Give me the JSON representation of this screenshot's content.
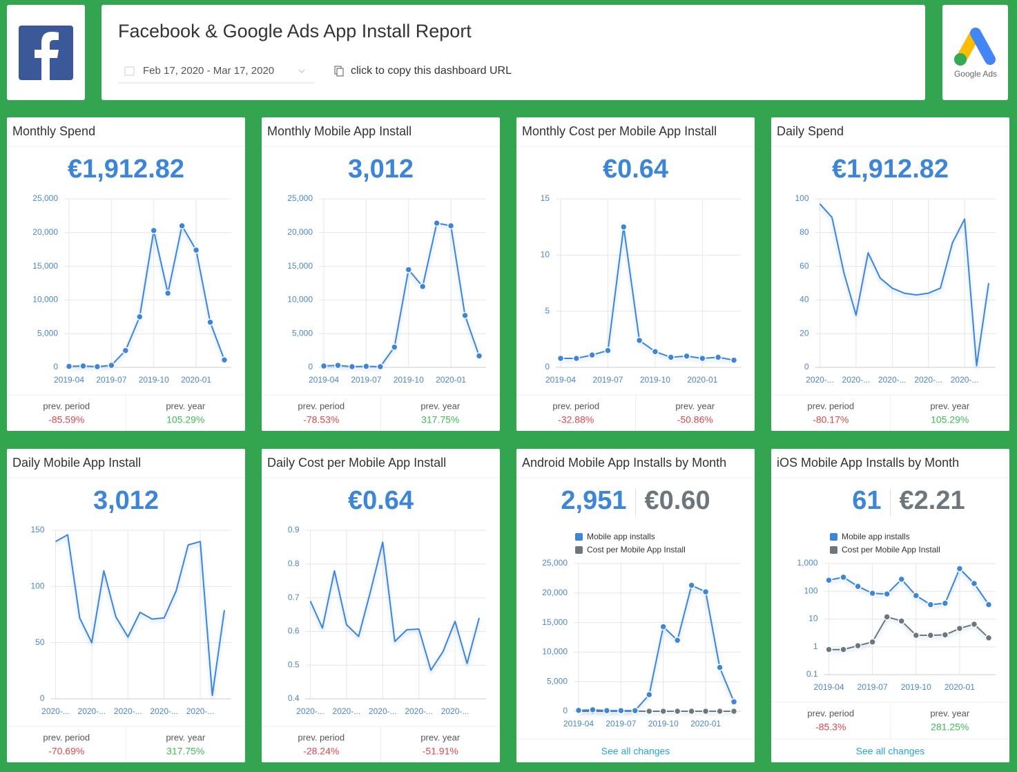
{
  "header": {
    "title": "Facebook & Google Ads App Install Report",
    "date_range": "Feb 17, 2020 - Mar 17, 2020",
    "copy_link": "click to copy this dashboard URL",
    "logo_text": "Google Ads"
  },
  "cards": [
    {
      "title": "Monthly Spend",
      "kpi": [
        "€1,912.82"
      ],
      "chart": {
        "type": "line",
        "markers": true,
        "color": "#3d85d8",
        "categories": [
          "2019-04",
          null,
          null,
          "2019-07",
          null,
          null,
          "2019-10",
          null,
          null,
          "2020-01",
          null,
          null
        ],
        "values": [
          150,
          200,
          100,
          300,
          2500,
          7500,
          20300,
          11000,
          21000,
          17400,
          6700,
          1100
        ],
        "ylim": [
          0,
          25000
        ],
        "yticks": [
          0,
          {
            "value": 5000,
            "label": "5,000"
          },
          {
            "value": 10000,
            "label": "10,000"
          },
          {
            "value": 15000,
            "label": "15,000"
          },
          {
            "value": 20000,
            "label": "20,000"
          },
          {
            "value": 25000,
            "label": "25,000"
          }
        ],
        "grid": true
      },
      "compare": [
        {
          "label": "prev. period",
          "value": "-85.59%",
          "color": "#e0454b"
        },
        {
          "label": "prev. year",
          "value": "105.29%",
          "color": "#3cba5a"
        }
      ]
    },
    {
      "title": "Monthly Mobile App Install",
      "kpi": [
        "3,012"
      ],
      "chart": {
        "type": "line",
        "markers": true,
        "color": "#3d85d8",
        "categories": [
          "2019-04",
          null,
          null,
          "2019-07",
          null,
          null,
          "2019-10",
          null,
          null,
          "2020-01",
          null,
          null
        ],
        "values": [
          200,
          300,
          100,
          150,
          100,
          3000,
          14500,
          12000,
          21400,
          21000,
          7700,
          1700
        ],
        "ylim": [
          0,
          25000
        ],
        "yticks": [
          0,
          {
            "value": 5000,
            "label": "5,000"
          },
          {
            "value": 10000,
            "label": "10,000"
          },
          {
            "value": 15000,
            "label": "15,000"
          },
          {
            "value": 20000,
            "label": "20,000"
          },
          {
            "value": 25000,
            "label": "25,000"
          }
        ],
        "grid": true
      },
      "compare": [
        {
          "label": "prev. period",
          "value": "-78.53%",
          "color": "#e0454b"
        },
        {
          "label": "prev. year",
          "value": "317.75%",
          "color": "#3cba5a"
        }
      ]
    },
    {
      "title": "Monthly Cost per Mobile App Install",
      "kpi": [
        "€0.64"
      ],
      "chart": {
        "type": "line",
        "markers": true,
        "color": "#3d85d8",
        "categories": [
          "2019-04",
          null,
          null,
          "2019-07",
          null,
          null,
          "2019-10",
          null,
          null,
          "2020-01",
          null,
          null
        ],
        "values": [
          0.8,
          0.8,
          1.1,
          1.5,
          12.5,
          2.4,
          1.4,
          0.9,
          1.0,
          0.8,
          0.9,
          0.64
        ],
        "ylim": [
          0,
          15
        ],
        "yticks": [
          0,
          5,
          10,
          15
        ],
        "grid": true
      },
      "compare": [
        {
          "label": "prev. period",
          "value": "-32.88%",
          "color": "#e0454b"
        },
        {
          "label": "prev. year",
          "value": "-50.86%",
          "color": "#e0454b"
        }
      ]
    },
    {
      "title": "Daily Spend",
      "kpi": [
        "€1,912.82"
      ],
      "chart": {
        "type": "line",
        "markers": false,
        "color": "#3d85d8",
        "categories": [
          "2020-...",
          null,
          null,
          "2020-...",
          null,
          null,
          "2020-...",
          null,
          null,
          "2020-...",
          null,
          null,
          "2020-...",
          null,
          null
        ],
        "values": [
          97,
          89,
          56,
          31,
          68,
          53,
          47,
          44,
          43,
          44,
          47,
          74,
          88,
          1,
          50
        ],
        "ylim": [
          0,
          100
        ],
        "yticks": [
          0,
          20,
          40,
          60,
          80,
          100
        ],
        "grid": true
      },
      "compare": [
        {
          "label": "prev. period",
          "value": "-80.17%",
          "color": "#e0454b"
        },
        {
          "label": "prev. year",
          "value": "105.29%",
          "color": "#3cba5a"
        }
      ]
    },
    {
      "title": "Daily Mobile App Install",
      "kpi": [
        "3,012"
      ],
      "chart": {
        "type": "line",
        "markers": false,
        "color": "#3d85d8",
        "categories": [
          "2020-...",
          null,
          null,
          "2020-...",
          null,
          null,
          "2020-...",
          null,
          null,
          "2020-...",
          null,
          null,
          "2020-...",
          null,
          null
        ],
        "values": [
          140,
          146,
          72,
          50,
          114,
          73,
          55,
          77,
          71,
          72,
          96,
          137,
          140,
          3,
          79
        ],
        "ylim": [
          0,
          150
        ],
        "yticks": [
          0,
          50,
          100,
          150
        ],
        "grid": true
      },
      "compare": [
        {
          "label": "prev. period",
          "value": "-70.69%",
          "color": "#e0454b"
        },
        {
          "label": "prev. year",
          "value": "317.75%",
          "color": "#3cba5a"
        }
      ]
    },
    {
      "title": "Daily Cost per Mobile App Install",
      "kpi": [
        "€0.64"
      ],
      "chart": {
        "type": "line",
        "markers": false,
        "color": "#3d85d8",
        "categories": [
          "2020-...",
          null,
          null,
          "2020-...",
          null,
          null,
          "2020-...",
          null,
          null,
          "2020-...",
          null,
          null,
          "2020-...",
          null,
          null
        ],
        "values": [
          0.69,
          0.61,
          0.78,
          0.62,
          0.585,
          0.72,
          0.865,
          0.57,
          0.605,
          0.607,
          0.485,
          0.54,
          0.63,
          0.505,
          0.64
        ],
        "ylim": [
          0.4,
          0.9
        ],
        "yticks": [
          0.4,
          0.5,
          0.6,
          0.7,
          0.8,
          0.9
        ],
        "grid": true
      },
      "compare": [
        {
          "label": "prev. period",
          "value": "-28.24%",
          "color": "#e0454b"
        },
        {
          "label": "prev. year",
          "value": "-51.91%",
          "color": "#e0454b"
        }
      ]
    },
    {
      "title": "Android Mobile App Installs by Month",
      "kpi": [
        "2,951",
        "€0.60"
      ],
      "chart": {
        "type": "line",
        "markers": true,
        "categories": [
          "2019-04",
          null,
          null,
          "2019-07",
          null,
          null,
          "2019-10",
          null,
          null,
          "2020-01",
          null,
          null
        ],
        "series": [
          {
            "name": "Mobile app installs",
            "color": "#3d85d8",
            "values": [
              150,
              250,
              100,
              100,
              100,
              2800,
              14300,
              12000,
              21300,
              20200,
              7400,
              1600
            ]
          },
          {
            "name": "Cost per Mobile App Install",
            "color": "#6d757d",
            "values": [
              0.8,
              0.8,
              1.1,
              1.5,
              12.5,
              2.4,
              1.4,
              0.9,
              1.0,
              0.8,
              0.9,
              0.6
            ]
          }
        ],
        "ylim": [
          0,
          25000
        ],
        "yticks": [
          0,
          {
            "value": 5000,
            "label": "5,000"
          },
          {
            "value": 10000,
            "label": "10,000"
          },
          {
            "value": 15000,
            "label": "15,000"
          },
          {
            "value": 20000,
            "label": "20,000"
          },
          {
            "value": 25000,
            "label": "25,000"
          }
        ],
        "grid": true
      },
      "link": "See all changes"
    },
    {
      "title": "iOS Mobile App Installs by Month",
      "kpi": [
        "61",
        "€2.21"
      ],
      "chart": {
        "type": "line",
        "markers": true,
        "log_scale": true,
        "categories": [
          "2019-04",
          null,
          null,
          "2019-07",
          null,
          null,
          "2019-10",
          null,
          null,
          "2020-01",
          null,
          null
        ],
        "series": [
          {
            "name": "Mobile app installs",
            "color": "#3d85d8",
            "values": [
              250,
              320,
              150,
              85,
              80,
              270,
              70,
              33,
              37,
              650,
              190,
              33
            ]
          },
          {
            "name": "Cost per Mobile App Install",
            "color": "#6d757d",
            "values": [
              0.8,
              0.8,
              1.1,
              1.5,
              12,
              8.5,
              2.6,
              2.6,
              2.7,
              4.6,
              6.5,
              2.1
            ]
          }
        ],
        "ylim": [
          0.1,
          1000
        ],
        "yticks": [
          0.1,
          1,
          10,
          100,
          {
            "value": 1000,
            "label": "1,000"
          }
        ],
        "grid": true
      },
      "compare": [
        {
          "label": "prev. period",
          "value": "-85.3%",
          "color": "#e0454b"
        },
        {
          "label": "prev. year",
          "value": "281.25%",
          "color": "#3cba5a"
        }
      ],
      "link": "See all changes"
    }
  ]
}
